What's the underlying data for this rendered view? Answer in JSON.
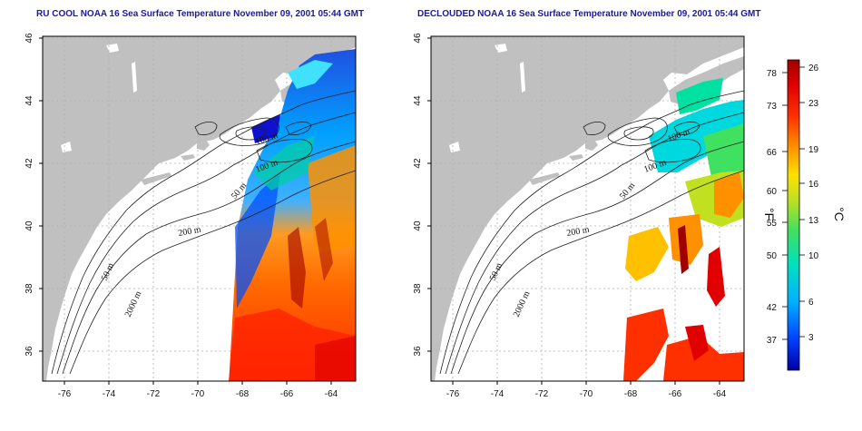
{
  "titles": {
    "left": "RU COOL NOAA 16 Sea Surface Temperature November 09, 2001 05:44 GMT",
    "right": "DECLOUDED NOAA 16 Sea Surface Temperature November 09, 2001 05:44 GMT"
  },
  "axes": {
    "x_ticks": [
      "-76",
      "-74",
      "-72",
      "-70",
      "-68",
      "-66",
      "-64"
    ],
    "y_ticks": [
      "46",
      "44",
      "42",
      "40",
      "38",
      "36"
    ]
  },
  "contour_labels": [
    "100 m",
    "100 m",
    "50 m",
    "200 m",
    "50 m",
    "2000 m"
  ],
  "colorbar": {
    "fahrenheit_unit": "°F",
    "celsius_unit": "°C",
    "fahrenheit_ticks": [
      "78",
      "73",
      "66",
      "60",
      "55",
      "50",
      "42",
      "37"
    ],
    "celsius_ticks": [
      "26",
      "23",
      "19",
      "16",
      "13",
      "10",
      "6",
      "3"
    ],
    "colors": [
      "#0000a0",
      "#0040ff",
      "#00b0ff",
      "#00e0c0",
      "#40e060",
      "#c0e020",
      "#ffe000",
      "#ff9000",
      "#ff3000",
      "#e00000",
      "#a00000"
    ]
  },
  "palette": {
    "land": "#c0c0c0",
    "water": "#ffffff",
    "grid": "#b0b0b0"
  }
}
